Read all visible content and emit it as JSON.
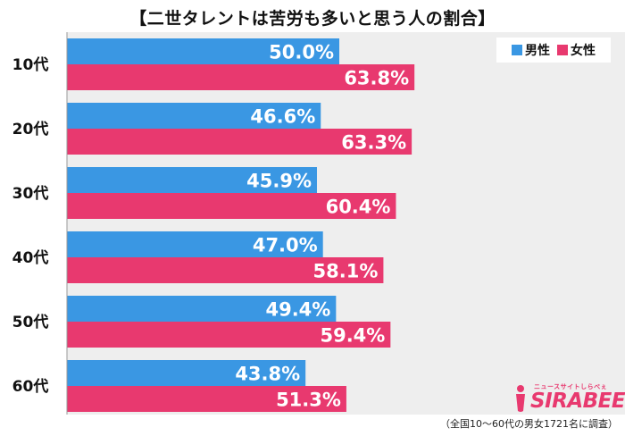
{
  "chart_data": {
    "type": "bar",
    "orientation": "horizontal",
    "title": "【二世タレントは苦労も多いと思う人の割合】",
    "categories": [
      "10代",
      "20代",
      "30代",
      "40代",
      "50代",
      "60代"
    ],
    "series": [
      {
        "name": "男性",
        "color": "#3a97e3",
        "values": [
          50.0,
          46.6,
          45.9,
          47.0,
          49.4,
          43.8
        ]
      },
      {
        "name": "女性",
        "color": "#e8396f",
        "values": [
          63.8,
          63.3,
          60.4,
          58.1,
          59.4,
          51.3
        ]
      }
    ],
    "value_labels": {
      "男性": [
        "50.0%",
        "46.6%",
        "45.9%",
        "47.0%",
        "49.4%",
        "43.8%"
      ],
      "女性": [
        "63.8%",
        "63.3%",
        "60.4%",
        "58.1%",
        "59.4%",
        "51.3%"
      ]
    },
    "xlim": [
      0,
      100
    ],
    "grid": false,
    "legend_position": "top-right"
  },
  "footnote": "（全国10〜60代の男女1721名に調査）",
  "logo": {
    "subtext": "ニュースサイトしらべぇ",
    "text": "SIRABEE"
  }
}
